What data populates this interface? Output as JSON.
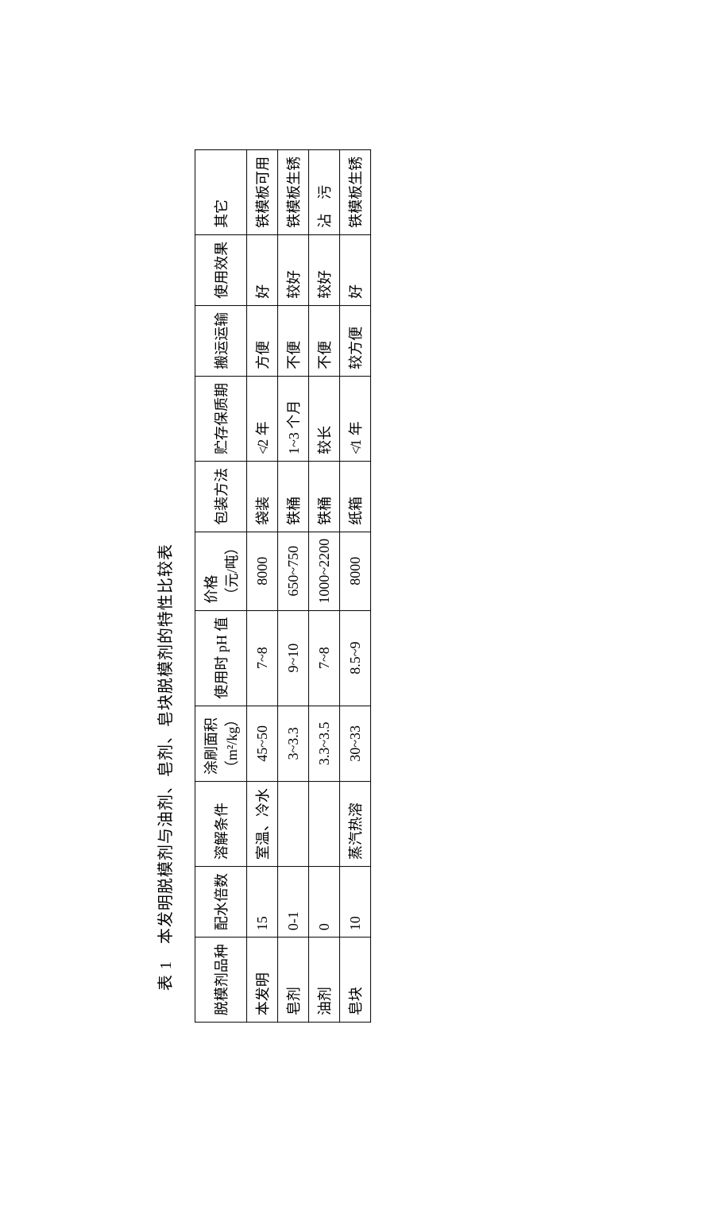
{
  "caption": "表 1　本发明脱模剂与油剂、皂剂、皂块脱模剂的特性比较表",
  "headers": {
    "c0": "脱模剂品种",
    "c1": "配水倍数",
    "c2": "溶解条件",
    "c3": "涂刷面积",
    "c3_sub": "（m²/kg）",
    "c4": "使用时 pH 值",
    "c5": "价格",
    "c5_sub": "（元/吨）",
    "c6": "包装方法",
    "c7": "贮存保质期",
    "c8": "搬运运输",
    "c9": "使用效果",
    "c10": "其它"
  },
  "rows": [
    {
      "c0": "本发明",
      "c1": "15",
      "c2": "室温、冷水",
      "c3": "45~50",
      "c4": "7~8",
      "c5": "8000",
      "c6": "袋装",
      "c7": "≮2 年",
      "c8": "方便",
      "c9": "好",
      "c10": "铁模板可用"
    },
    {
      "c0": "皂剂",
      "c1": "0-1",
      "c2": "",
      "c3": "3~3.3",
      "c4": "9~10",
      "c5": "650~750",
      "c6": "铁桶",
      "c7": "1~3 个月",
      "c8": "不便",
      "c9": "较好",
      "c10": "铁模板生锈"
    },
    {
      "c0": "油剂",
      "c1": "0",
      "c2": "",
      "c3": "3.3~3.5",
      "c4": "7~8",
      "c5": "1000~2200",
      "c6": "铁桶",
      "c7": "较长",
      "c8": "不便",
      "c9": "较好",
      "c10": "沾　污"
    },
    {
      "c0": "皂块",
      "c1": "10",
      "c2": "蒸汽热溶",
      "c3": "30~33",
      "c4": "8.5~9",
      "c5": "8000",
      "c6": "纸箱",
      "c7": "≮1 年",
      "c8": "较方便",
      "c9": "好",
      "c10": "铁模板生锈"
    }
  ]
}
